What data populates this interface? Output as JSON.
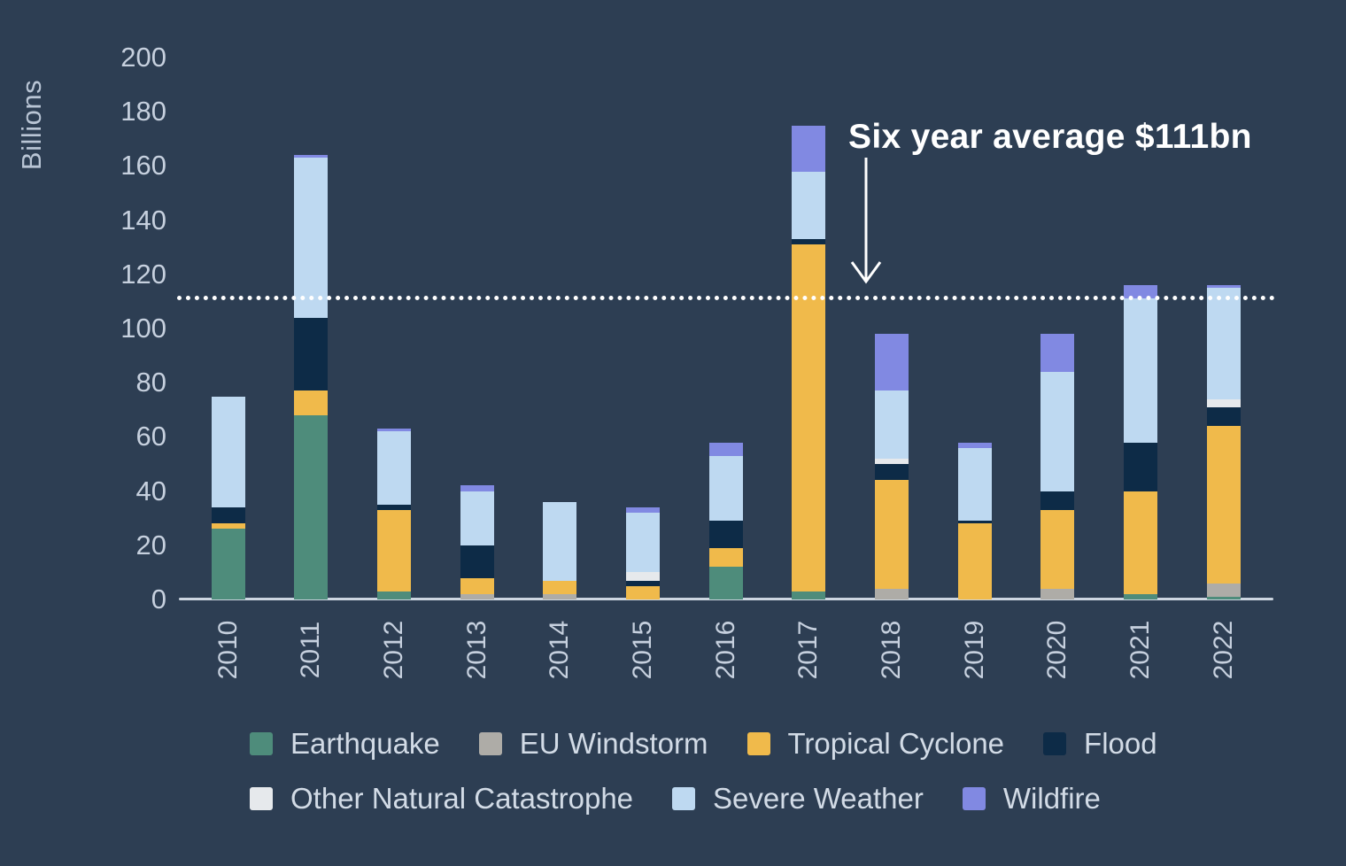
{
  "chart_data": {
    "type": "bar",
    "stacked": true,
    "title": "",
    "ylabel": "Billions",
    "xlabel": "",
    "ylim": [
      0,
      200
    ],
    "yticks": [
      0,
      20,
      40,
      60,
      80,
      100,
      120,
      140,
      160,
      180,
      200
    ],
    "grid": false,
    "legend_position": "bottom",
    "background_color": "#2d3e53",
    "categories": [
      "2010",
      "2011",
      "2012",
      "2013",
      "2014",
      "2015",
      "2016",
      "2017",
      "2018",
      "2019",
      "2020",
      "2021",
      "2022"
    ],
    "series": [
      {
        "name": "Earthquake",
        "color": "#4e8c7b",
        "values": [
          26,
          68,
          3,
          0,
          0,
          0,
          12,
          3,
          0,
          0,
          0,
          2,
          1
        ]
      },
      {
        "name": "EU Windstorm",
        "color": "#aeaca7",
        "values": [
          0,
          0,
          0,
          2,
          2,
          0,
          0,
          0,
          4,
          0,
          4,
          0,
          5
        ]
      },
      {
        "name": "Tropical Cyclone",
        "color": "#f0ba4b",
        "values": [
          2,
          9,
          30,
          6,
          5,
          5,
          7,
          128,
          40,
          28,
          29,
          38,
          58
        ]
      },
      {
        "name": "Flood",
        "color": "#0d2b47",
        "values": [
          6,
          27,
          2,
          12,
          0,
          2,
          10,
          2,
          6,
          1,
          7,
          18,
          7
        ]
      },
      {
        "name": "Other Natural Catastrophe",
        "color": "#e6e9ec",
        "values": [
          0,
          0,
          0,
          0,
          0,
          3,
          0,
          0,
          2,
          0,
          0,
          0,
          3
        ]
      },
      {
        "name": "Severe Weather",
        "color": "#bed9f1",
        "values": [
          41,
          59,
          27,
          20,
          29,
          22,
          24,
          25,
          25,
          27,
          44,
          53,
          41
        ]
      },
      {
        "name": "Wildfire",
        "color": "#8189e2",
        "values": [
          0,
          1,
          1,
          2,
          0,
          2,
          5,
          17,
          21,
          2,
          14,
          5,
          1
        ]
      }
    ],
    "totals": [
      75,
      164,
      63,
      42,
      36,
      34,
      58,
      175,
      98,
      58,
      98,
      116,
      116
    ],
    "average_line": {
      "label": "Six year average $111bn",
      "value": 111
    },
    "legend_rows": [
      [
        "Earthquake",
        "EU Windstorm",
        "Tropical Cyclone",
        "Flood"
      ],
      [
        "Other Natural Catastrophe",
        "Severe Weather",
        "Wildfire"
      ]
    ]
  }
}
